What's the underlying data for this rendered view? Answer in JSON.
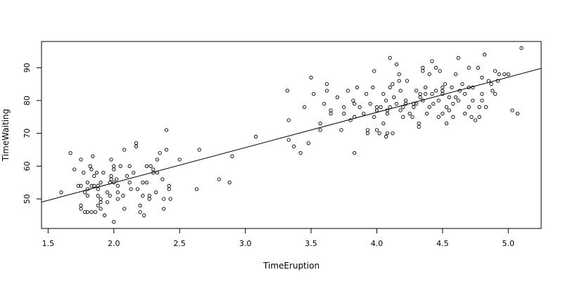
{
  "chart_data": {
    "type": "scatter",
    "title": "",
    "xlabel": "TimeEruption",
    "ylabel": "TimeWaiting",
    "xlim": [
      1.45,
      5.25
    ],
    "ylim": [
      41,
      98
    ],
    "xticks": [
      1.5,
      2.0,
      2.5,
      3.0,
      3.5,
      4.0,
      4.5,
      5.0
    ],
    "xtick_labels": [
      "1.5",
      "2.0",
      "2.5",
      "3.0",
      "3.5",
      "4.0",
      "4.5",
      "5.0"
    ],
    "yticks": [
      50,
      60,
      70,
      80,
      90
    ],
    "ytick_labels": [
      "50",
      "60",
      "70",
      "80",
      "90"
    ],
    "grid": false,
    "regression_line": {
      "intercept": 33.47,
      "slope": 10.73
    },
    "points": [
      [
        1.6,
        52
      ],
      [
        1.67,
        64
      ],
      [
        1.7,
        59
      ],
      [
        1.73,
        54
      ],
      [
        1.75,
        54
      ],
      [
        1.75,
        62
      ],
      [
        1.75,
        48
      ],
      [
        1.75,
        47
      ],
      [
        1.77,
        58
      ],
      [
        1.78,
        46
      ],
      [
        1.78,
        52
      ],
      [
        1.8,
        53
      ],
      [
        1.8,
        51
      ],
      [
        1.8,
        46
      ],
      [
        1.8,
        55
      ],
      [
        1.82,
        60
      ],
      [
        1.83,
        59
      ],
      [
        1.83,
        54
      ],
      [
        1.83,
        46
      ],
      [
        1.84,
        63
      ],
      [
        1.85,
        57
      ],
      [
        1.85,
        54
      ],
      [
        1.86,
        46
      ],
      [
        1.87,
        58
      ],
      [
        1.88,
        53
      ],
      [
        1.88,
        54
      ],
      [
        1.88,
        48
      ],
      [
        1.88,
        51
      ],
      [
        1.9,
        47
      ],
      [
        1.9,
        49
      ],
      [
        1.9,
        55
      ],
      [
        1.9,
        50
      ],
      [
        1.92,
        58
      ],
      [
        1.93,
        45
      ],
      [
        1.95,
        49
      ],
      [
        1.95,
        52
      ],
      [
        1.97,
        51
      ],
      [
        1.97,
        55
      ],
      [
        1.98,
        56
      ],
      [
        1.98,
        57
      ],
      [
        1.98,
        62
      ],
      [
        2.0,
        59
      ],
      [
        2.0,
        60
      ],
      [
        2.0,
        55
      ],
      [
        2.0,
        43
      ],
      [
        2.02,
        56
      ],
      [
        2.03,
        52
      ],
      [
        2.03,
        50
      ],
      [
        2.03,
        54
      ],
      [
        2.05,
        60
      ],
      [
        2.07,
        51
      ],
      [
        2.08,
        47
      ],
      [
        2.08,
        65
      ],
      [
        2.1,
        57
      ],
      [
        2.12,
        55
      ],
      [
        2.12,
        60
      ],
      [
        2.13,
        53
      ],
      [
        2.15,
        58
      ],
      [
        2.17,
        67
      ],
      [
        2.17,
        66
      ],
      [
        2.18,
        53
      ],
      [
        2.2,
        46
      ],
      [
        2.2,
        48
      ],
      [
        2.22,
        55
      ],
      [
        2.22,
        51
      ],
      [
        2.23,
        45
      ],
      [
        2.25,
        60
      ],
      [
        2.25,
        55
      ],
      [
        2.27,
        50
      ],
      [
        2.27,
        51
      ],
      [
        2.28,
        60
      ],
      [
        2.3,
        58
      ],
      [
        2.3,
        59
      ],
      [
        2.32,
        52
      ],
      [
        2.33,
        62
      ],
      [
        2.33,
        58
      ],
      [
        2.35,
        64
      ],
      [
        2.37,
        56
      ],
      [
        2.38,
        50
      ],
      [
        2.38,
        47
      ],
      [
        2.4,
        71
      ],
      [
        2.4,
        65
      ],
      [
        2.42,
        53
      ],
      [
        2.42,
        54
      ],
      [
        2.43,
        50
      ],
      [
        2.5,
        62
      ],
      [
        2.63,
        53
      ],
      [
        2.65,
        65
      ],
      [
        2.8,
        56
      ],
      [
        2.88,
        55
      ],
      [
        2.9,
        63
      ],
      [
        3.08,
        69
      ],
      [
        3.32,
        83
      ],
      [
        3.33,
        74
      ],
      [
        3.33,
        68
      ],
      [
        3.37,
        66
      ],
      [
        3.42,
        64
      ],
      [
        3.45,
        78
      ],
      [
        3.48,
        67
      ],
      [
        3.5,
        87
      ],
      [
        3.52,
        82
      ],
      [
        3.57,
        73
      ],
      [
        3.57,
        71
      ],
      [
        3.6,
        79
      ],
      [
        3.62,
        85
      ],
      [
        3.62,
        83
      ],
      [
        3.65,
        77
      ],
      [
        3.65,
        76
      ],
      [
        3.7,
        81
      ],
      [
        3.73,
        71
      ],
      [
        3.75,
        78
      ],
      [
        3.75,
        76
      ],
      [
        3.78,
        83
      ],
      [
        3.8,
        74
      ],
      [
        3.82,
        80
      ],
      [
        3.83,
        64
      ],
      [
        3.83,
        75
      ],
      [
        3.83,
        79
      ],
      [
        3.85,
        84
      ],
      [
        3.87,
        78
      ],
      [
        3.9,
        76
      ],
      [
        3.92,
        82
      ],
      [
        3.93,
        70
      ],
      [
        3.93,
        71
      ],
      [
        3.95,
        79
      ],
      [
        3.97,
        84
      ],
      [
        3.98,
        75
      ],
      [
        3.98,
        89
      ],
      [
        4.0,
        77
      ],
      [
        4.0,
        78
      ],
      [
        4.0,
        71
      ],
      [
        4.02,
        70
      ],
      [
        4.03,
        78
      ],
      [
        4.05,
        73
      ],
      [
        4.05,
        82
      ],
      [
        4.07,
        80
      ],
      [
        4.07,
        69
      ],
      [
        4.08,
        77
      ],
      [
        4.08,
        70
      ],
      [
        4.08,
        76
      ],
      [
        4.1,
        93
      ],
      [
        4.1,
        78
      ],
      [
        4.1,
        84
      ],
      [
        4.12,
        70
      ],
      [
        4.12,
        85
      ],
      [
        4.13,
        81
      ],
      [
        4.15,
        79
      ],
      [
        4.15,
        91
      ],
      [
        4.17,
        88
      ],
      [
        4.17,
        86
      ],
      [
        4.18,
        83
      ],
      [
        4.18,
        77
      ],
      [
        4.2,
        78
      ],
      [
        4.2,
        75
      ],
      [
        4.22,
        79
      ],
      [
        4.22,
        80
      ],
      [
        4.23,
        86
      ],
      [
        4.25,
        76
      ],
      [
        4.27,
        75
      ],
      [
        4.28,
        79
      ],
      [
        4.28,
        78
      ],
      [
        4.3,
        83
      ],
      [
        4.3,
        79
      ],
      [
        4.32,
        73
      ],
      [
        4.32,
        72
      ],
      [
        4.33,
        82
      ],
      [
        4.33,
        81
      ],
      [
        4.35,
        90
      ],
      [
        4.35,
        89
      ],
      [
        4.35,
        80
      ],
      [
        4.37,
        84
      ],
      [
        4.37,
        82
      ],
      [
        4.38,
        76
      ],
      [
        4.4,
        88
      ],
      [
        4.4,
        78
      ],
      [
        4.42,
        82
      ],
      [
        4.42,
        92
      ],
      [
        4.43,
        79
      ],
      [
        4.45,
        83
      ],
      [
        4.45,
        90
      ],
      [
        4.47,
        75
      ],
      [
        4.47,
        80
      ],
      [
        4.48,
        89
      ],
      [
        4.5,
        76
      ],
      [
        4.5,
        83
      ],
      [
        4.5,
        82
      ],
      [
        4.5,
        84
      ],
      [
        4.52,
        85
      ],
      [
        4.53,
        73
      ],
      [
        4.53,
        78
      ],
      [
        4.55,
        81
      ],
      [
        4.55,
        77
      ],
      [
        4.57,
        84
      ],
      [
        4.58,
        75
      ],
      [
        4.58,
        79
      ],
      [
        4.6,
        81
      ],
      [
        4.6,
        88
      ],
      [
        4.62,
        93
      ],
      [
        4.62,
        80
      ],
      [
        4.63,
        83
      ],
      [
        4.65,
        85
      ],
      [
        4.67,
        82
      ],
      [
        4.67,
        76
      ],
      [
        4.7,
        90
      ],
      [
        4.7,
        84
      ],
      [
        4.7,
        78
      ],
      [
        4.72,
        75
      ],
      [
        4.73,
        80
      ],
      [
        4.73,
        84
      ],
      [
        4.75,
        74
      ],
      [
        4.77,
        90
      ],
      [
        4.78,
        78
      ],
      [
        4.78,
        75
      ],
      [
        4.8,
        82
      ],
      [
        4.8,
        87
      ],
      [
        4.8,
        80
      ],
      [
        4.82,
        94
      ],
      [
        4.83,
        78
      ],
      [
        4.85,
        86
      ],
      [
        4.87,
        85
      ],
      [
        4.88,
        83
      ],
      [
        4.9,
        82
      ],
      [
        4.9,
        89
      ],
      [
        4.92,
        86
      ],
      [
        4.93,
        88
      ],
      [
        4.97,
        88
      ],
      [
        5.0,
        88
      ],
      [
        5.03,
        77
      ],
      [
        5.07,
        76
      ],
      [
        5.1,
        96
      ]
    ]
  }
}
